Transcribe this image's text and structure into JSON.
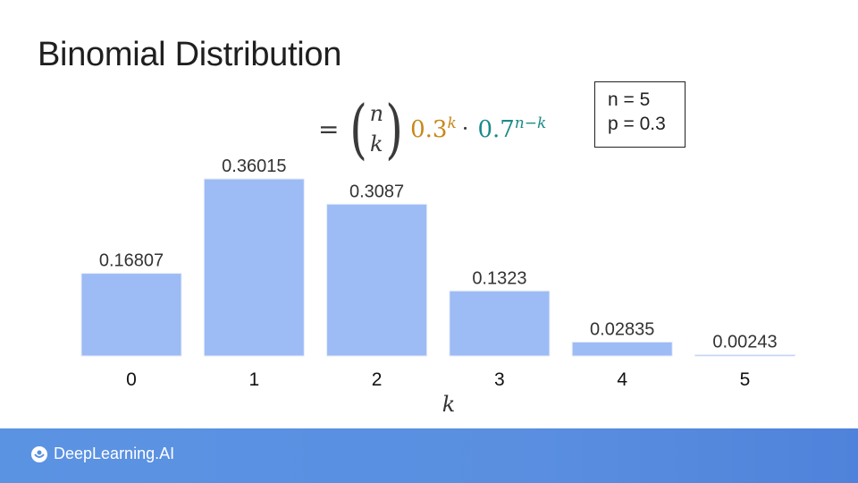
{
  "slide": {
    "title": "Binomial Distribution"
  },
  "formula": {
    "equals": "=",
    "binom_top": "n",
    "binom_bottom": "k",
    "term1_base": "0.3",
    "term1_exp": "k",
    "dot": "·",
    "term2_base": "0.7",
    "term2_exp": "n−k"
  },
  "params": {
    "line1": "n = 5",
    "line2": "p = 0.3"
  },
  "chart_data": {
    "type": "bar",
    "categories": [
      "0",
      "1",
      "2",
      "3",
      "4",
      "5"
    ],
    "values": [
      0.16807,
      0.36015,
      0.3087,
      0.1323,
      0.02835,
      0.00243
    ],
    "labels": [
      "0.16807",
      "0.36015",
      "0.3087",
      "0.1323",
      "0.02835",
      "0.00243"
    ],
    "xlabel": "k",
    "ylabel": "",
    "ylim": [
      0,
      0.4
    ],
    "grid": false,
    "bar_color": "#9dbbf5"
  },
  "footer": {
    "brand": "DeepLearning.AI",
    "logo_icon": "deeplearning-logo-icon",
    "color": "#5a8fe0"
  }
}
